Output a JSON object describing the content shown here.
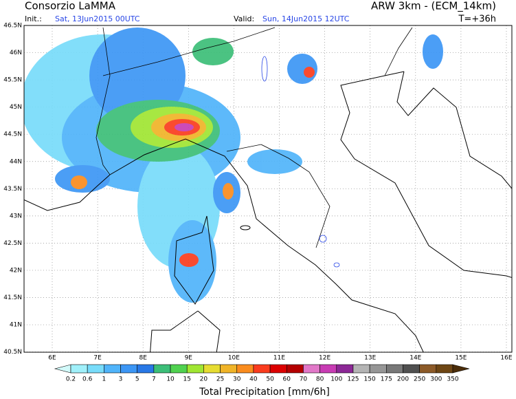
{
  "header": {
    "title": "Consorzio LaMMA",
    "model": "ARW 3km - (ECM_14km)",
    "init_label": "Init.:",
    "init_time": "Sat, 13Jun2015 00UTC",
    "valid_label": "Valid:",
    "valid_time": "Sun, 14Jun2015 12UTC",
    "lead": "T=+36h"
  },
  "map": {
    "lat_labels": [
      "46.5N",
      "46N",
      "45.5N",
      "45N",
      "44.5N",
      "44N",
      "43.5N",
      "43N",
      "42.5N",
      "42N",
      "41.5N",
      "41N",
      "40.5N"
    ],
    "lon_labels": [
      "6E",
      "7E",
      "8E",
      "9E",
      "10E",
      "11E",
      "12E",
      "13E",
      "14E",
      "15E",
      "16E"
    ]
  },
  "colorbar": {
    "labels": [
      "0.2",
      "0.6",
      "1",
      "3",
      "5",
      "7",
      "10",
      "15",
      "20",
      "25",
      "30",
      "40",
      "50",
      "60",
      "70",
      "80",
      "100",
      "125",
      "150",
      "175",
      "200",
      "250",
      "300",
      "350"
    ],
    "colors": [
      "#d2fafa",
      "#a0f0fa",
      "#78dcfa",
      "#50b4fa",
      "#3c96f5",
      "#2878e6",
      "#3cbe78",
      "#50d250",
      "#a0e632",
      "#e6dc32",
      "#f0b428",
      "#fa8c1e",
      "#fa3c1e",
      "#dc0000",
      "#b40000",
      "#e178c8",
      "#c83cb4",
      "#8c2896",
      "#b4b4b4",
      "#969696",
      "#787878",
      "#505050",
      "#8c5a28",
      "#6e4614",
      "#4b2d0a"
    ],
    "title": "Total Precipitation [mm/6h]"
  }
}
